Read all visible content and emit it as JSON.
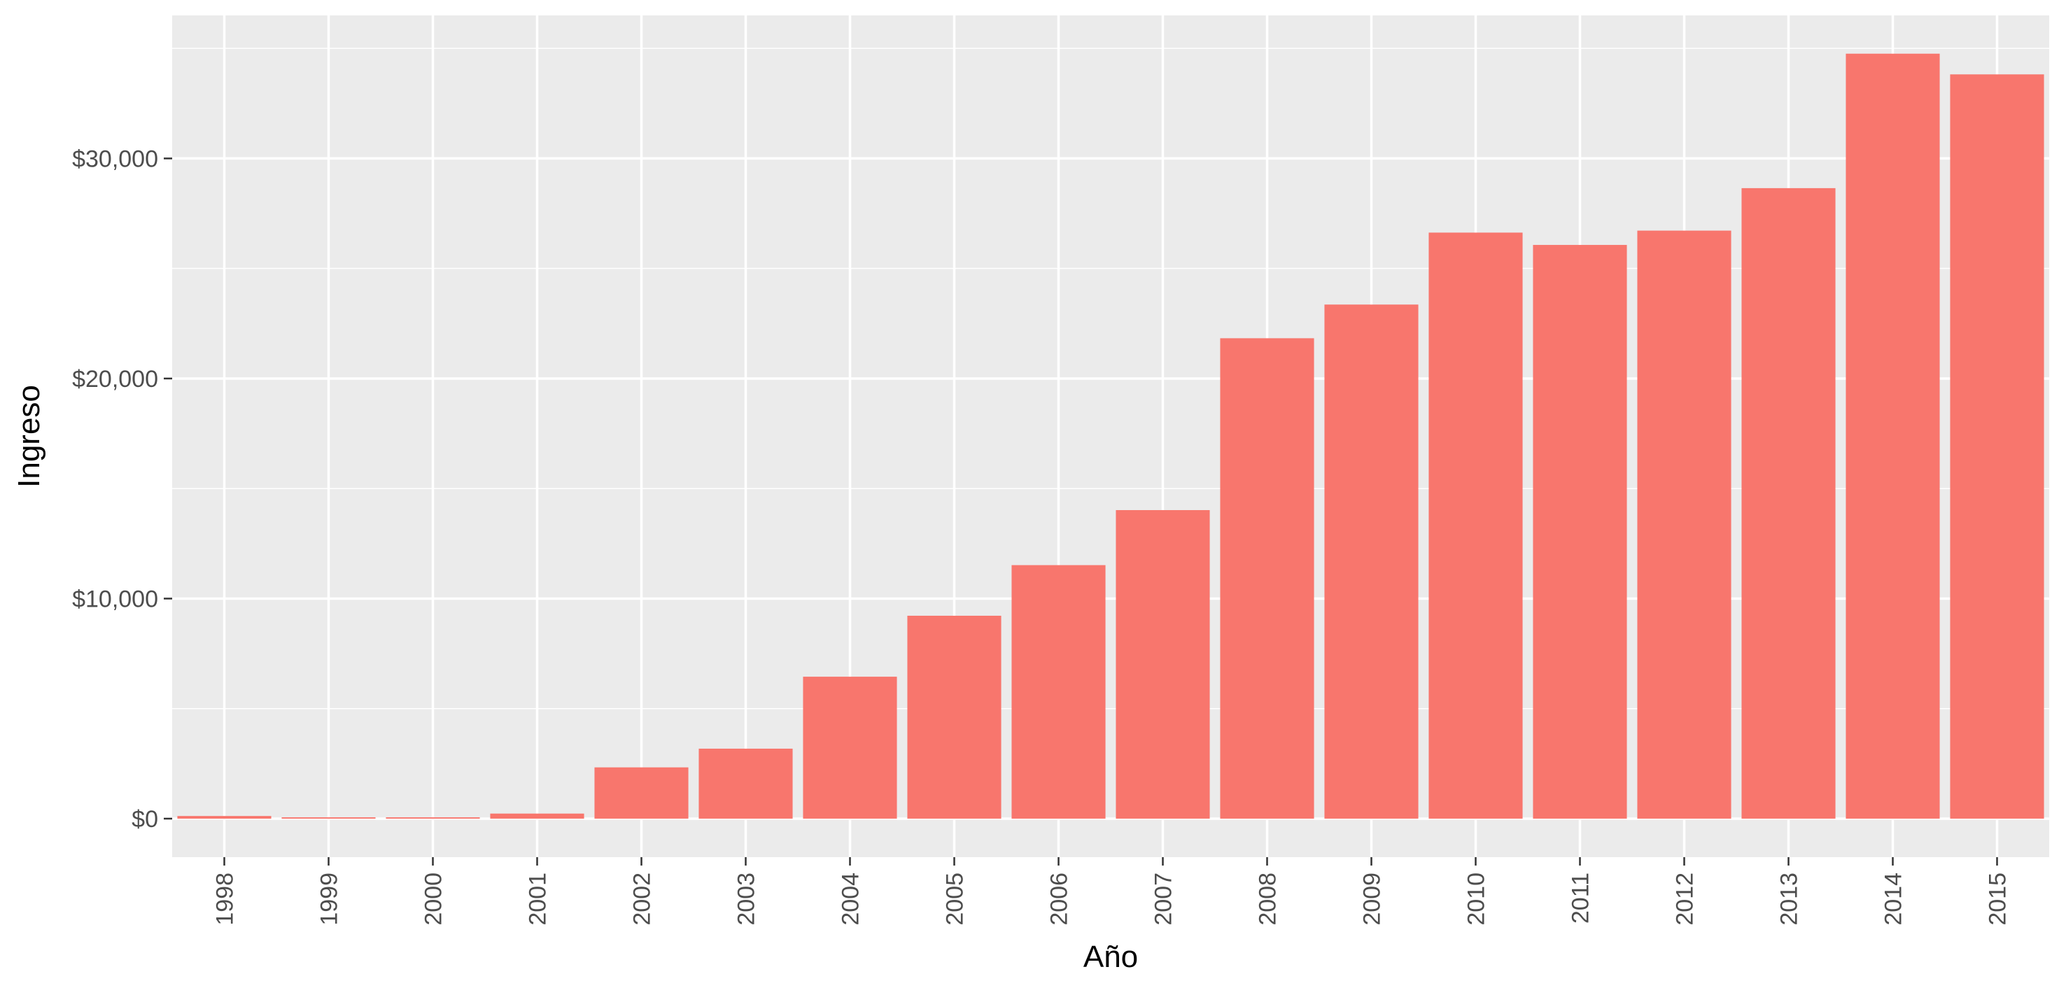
{
  "chart_data": {
    "type": "bar",
    "title": "",
    "xlabel": "Año",
    "ylabel": "Ingreso",
    "categories": [
      "1998",
      "1999",
      "2000",
      "2001",
      "2002",
      "2003",
      "2004",
      "2005",
      "2006",
      "2007",
      "2008",
      "2009",
      "2010",
      "2011",
      "2012",
      "2013",
      "2014",
      "2015"
    ],
    "values": [
      120,
      60,
      60,
      230,
      2330,
      3180,
      6450,
      9220,
      11520,
      14020,
      21830,
      23360,
      26630,
      26070,
      26720,
      28650,
      34760,
      33820
    ],
    "ylim": [
      -1750,
      36500
    ],
    "yticks": [
      0,
      10000,
      20000,
      30000
    ],
    "ytick_labels": [
      "$0",
      "$10,000",
      "$20,000",
      "$30,000"
    ],
    "grid": true,
    "legend": "none",
    "colors": {
      "bar": "#F8766D",
      "panel": "#EBEBEB",
      "grid": "#FFFFFF"
    }
  }
}
